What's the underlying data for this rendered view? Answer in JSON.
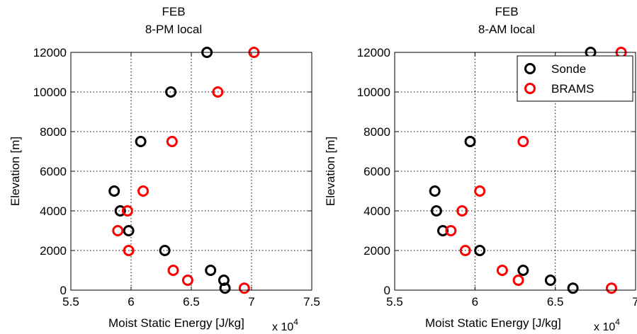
{
  "chart_data": [
    {
      "type": "scatter",
      "title": "FEB",
      "subtitle": "8-PM local",
      "xlabel": "Moist Static Energy [J/kg]",
      "x_multiplier_label": "x 10",
      "x_multiplier_exponent": "4",
      "ylabel": "Elevation [m]",
      "xlim": [
        5.5,
        7.5
      ],
      "ylim": [
        0,
        12000
      ],
      "x_ticks": [
        5.5,
        6,
        6.5,
        7,
        7.5
      ],
      "x_tick_labels": [
        "5.5",
        "6",
        "6.5",
        "7",
        "7.5"
      ],
      "y_ticks": [
        0,
        2000,
        4000,
        6000,
        8000,
        10000,
        12000
      ],
      "y_tick_labels": [
        "0",
        "2000",
        "4000",
        "6000",
        "8000",
        "10000",
        "12000"
      ],
      "grid": true,
      "legend": null,
      "series": [
        {
          "name": "Sonde",
          "color": "#000000",
          "points": [
            {
              "x": 6.63,
              "y": 12000
            },
            {
              "x": 6.33,
              "y": 10000
            },
            {
              "x": 6.08,
              "y": 7500
            },
            {
              "x": 5.86,
              "y": 5000
            },
            {
              "x": 5.91,
              "y": 4000
            },
            {
              "x": 5.98,
              "y": 3000
            },
            {
              "x": 6.28,
              "y": 2000
            },
            {
              "x": 6.66,
              "y": 1000
            },
            {
              "x": 6.77,
              "y": 500
            },
            {
              "x": 6.78,
              "y": 100
            }
          ]
        },
        {
          "name": "BRAMS",
          "color": "#ff0000",
          "points": [
            {
              "x": 7.02,
              "y": 12000
            },
            {
              "x": 6.72,
              "y": 10000
            },
            {
              "x": 6.34,
              "y": 7500
            },
            {
              "x": 6.1,
              "y": 5000
            },
            {
              "x": 5.97,
              "y": 4000
            },
            {
              "x": 5.89,
              "y": 3000
            },
            {
              "x": 5.98,
              "y": 2000
            },
            {
              "x": 6.35,
              "y": 1000
            },
            {
              "x": 6.47,
              "y": 500
            },
            {
              "x": 6.94,
              "y": 100
            }
          ]
        }
      ]
    },
    {
      "type": "scatter",
      "title": "FEB",
      "subtitle": "8-AM local",
      "xlabel": "Moist Static Energy [J/kg]",
      "x_multiplier_label": "x 10",
      "x_multiplier_exponent": "4",
      "ylabel": "Elevation [m]",
      "xlim": [
        5.5,
        7.0
      ],
      "ylim": [
        0,
        12000
      ],
      "x_ticks": [
        5.5,
        6,
        6.5,
        7
      ],
      "x_tick_labels": [
        "5.5",
        "6",
        "6.5",
        "7"
      ],
      "y_ticks": [
        0,
        2000,
        4000,
        6000,
        8000,
        10000,
        12000
      ],
      "y_tick_labels": [
        "0",
        "2000",
        "4000",
        "6000",
        "8000",
        "10000",
        "12000"
      ],
      "grid": true,
      "legend": "top-right",
      "series": [
        {
          "name": "Sonde",
          "color": "#000000",
          "points": [
            {
              "x": 6.72,
              "y": 12000
            },
            {
              "x": 5.97,
              "y": 7500
            },
            {
              "x": 5.75,
              "y": 5000
            },
            {
              "x": 5.76,
              "y": 4000
            },
            {
              "x": 5.8,
              "y": 3000
            },
            {
              "x": 6.03,
              "y": 2000
            },
            {
              "x": 6.3,
              "y": 1000
            },
            {
              "x": 6.47,
              "y": 500
            },
            {
              "x": 6.61,
              "y": 100
            }
          ]
        },
        {
          "name": "BRAMS",
          "color": "#ff0000",
          "points": [
            {
              "x": 6.91,
              "y": 12000
            },
            {
              "x": 6.3,
              "y": 7500
            },
            {
              "x": 6.03,
              "y": 5000
            },
            {
              "x": 5.92,
              "y": 4000
            },
            {
              "x": 5.85,
              "y": 3000
            },
            {
              "x": 5.94,
              "y": 2000
            },
            {
              "x": 6.17,
              "y": 1000
            },
            {
              "x": 6.27,
              "y": 500
            },
            {
              "x": 6.85,
              "y": 100
            }
          ]
        }
      ]
    }
  ]
}
